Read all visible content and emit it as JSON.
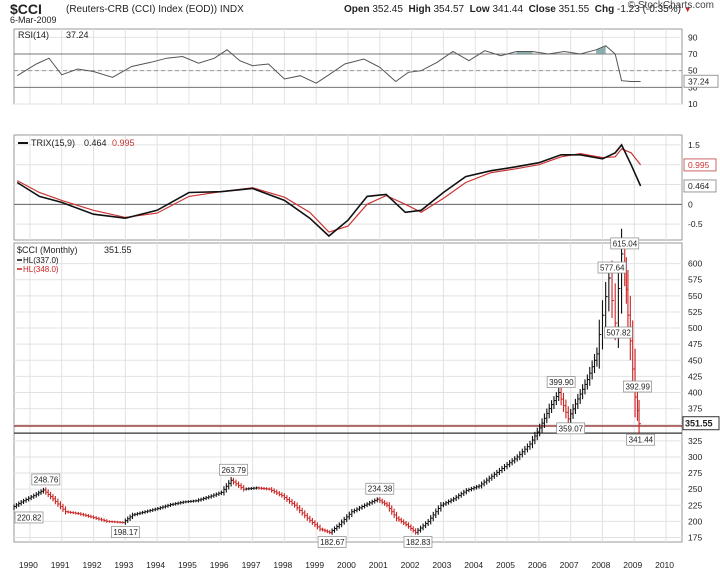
{
  "header": {
    "ticker": "$CCI",
    "description": "(Reuters-CRB (CCI) Index (EOD))",
    "exchange": "INDX",
    "date": "6-Mar-2009",
    "open_label": "Open",
    "open": "352.45",
    "high_label": "High",
    "high": "354.57",
    "low_label": "Low",
    "low": "341.44",
    "close_label": "Close",
    "close": "351.55",
    "chg_label": "Chg",
    "chg": "-1.23 (-0.35%)",
    "chg_arrow": "▼",
    "logo": "© StockCharts.com"
  },
  "colors": {
    "price_up": "#111111",
    "price_down": "#cc2222",
    "trix": "#111111",
    "signal": "#cc3333",
    "rsi": "#555555",
    "rsi_fill": "#6f9c9c",
    "hline": "#8b1a1a",
    "grid": "#bbbbbb"
  },
  "chart_data": [
    {
      "type": "line",
      "panel": "rsi",
      "title": "RSI(14)",
      "value_label": "37.24",
      "last_value": 37.24,
      "ylim": [
        10,
        100
      ],
      "yticks": [
        90,
        70,
        50,
        30,
        10
      ],
      "overbought": 70,
      "oversold": 30,
      "x": [
        1989.6,
        1990.2,
        1990.6,
        1991.0,
        1991.5,
        1992.0,
        1992.6,
        1993.2,
        1993.8,
        1994.3,
        1994.8,
        1995.3,
        1995.8,
        1996.2,
        1996.6,
        1997.0,
        1997.5,
        1998.0,
        1998.5,
        1999.0,
        1999.4,
        1999.9,
        2000.5,
        2001.0,
        2001.5,
        2001.9,
        2002.3,
        2002.8,
        2003.3,
        2003.8,
        2004.3,
        2004.8,
        2005.3,
        2005.8,
        2006.3,
        2006.8,
        2007.3,
        2007.8,
        2008.1,
        2008.4,
        2008.6,
        2008.9,
        2009.2
      ],
      "y": [
        44,
        58,
        65,
        45,
        52,
        49,
        42,
        55,
        60,
        65,
        67,
        59,
        65,
        75,
        62,
        56,
        58,
        40,
        44,
        35,
        45,
        58,
        64,
        54,
        37,
        48,
        50,
        60,
        73,
        62,
        74,
        68,
        73,
        73,
        70,
        73,
        70,
        75,
        80,
        70,
        38,
        37,
        37
      ]
    },
    {
      "type": "line",
      "panel": "trix",
      "title": "TRIX(15,9)",
      "value_label": "0.464",
      "signal_label": "0.995",
      "ylim": [
        -0.9,
        1.75
      ],
      "yticks": [
        1.5,
        1.0,
        0.5,
        0.0,
        -0.5
      ],
      "series": [
        {
          "role": "trix",
          "last": 0.464,
          "x": [
            1989.6,
            1990.3,
            1991.0,
            1992.0,
            1993.0,
            1994.0,
            1995.0,
            1996.0,
            1997.0,
            1998.0,
            1998.8,
            1999.4,
            2000.0,
            2000.6,
            2001.2,
            2001.8,
            2002.3,
            2003.0,
            2003.7,
            2004.5,
            2005.3,
            2006.0,
            2006.7,
            2007.3,
            2008.0,
            2008.4,
            2008.6,
            2008.9,
            2009.2
          ],
          "y": [
            0.55,
            0.2,
            0.05,
            -0.25,
            -0.35,
            -0.15,
            0.3,
            0.32,
            0.4,
            0.1,
            -0.35,
            -0.8,
            -0.4,
            0.2,
            0.25,
            -0.2,
            -0.15,
            0.3,
            0.7,
            0.85,
            0.95,
            1.05,
            1.25,
            1.25,
            1.15,
            1.3,
            1.5,
            1.0,
            0.464
          ]
        },
        {
          "role": "signal",
          "last": 0.995,
          "x": [
            1989.6,
            1990.3,
            1991.0,
            1992.0,
            1993.0,
            1994.0,
            1995.0,
            1996.0,
            1997.0,
            1998.0,
            1998.8,
            1999.4,
            2000.0,
            2000.6,
            2001.2,
            2001.8,
            2002.3,
            2003.0,
            2003.7,
            2004.5,
            2005.3,
            2006.0,
            2006.7,
            2007.3,
            2008.0,
            2008.4,
            2008.6,
            2008.9,
            2009.2
          ],
          "y": [
            0.6,
            0.3,
            0.1,
            -0.15,
            -0.33,
            -0.22,
            0.2,
            0.32,
            0.42,
            0.18,
            -0.2,
            -0.7,
            -0.55,
            0.0,
            0.22,
            0.0,
            -0.2,
            0.15,
            0.55,
            0.8,
            0.9,
            1.0,
            1.2,
            1.28,
            1.18,
            1.2,
            1.4,
            1.3,
            0.995
          ]
        }
      ]
    },
    {
      "type": "line",
      "panel": "price",
      "title": "$CCI (Monthly)",
      "value_label": "351.55",
      "legend": [
        {
          "label": "HL(337.0)",
          "value": 337.0,
          "color": "#111111"
        },
        {
          "label": "HL(348.0)",
          "value": 348.0,
          "color": "#cc2222"
        }
      ],
      "ylim": [
        168,
        632
      ],
      "yticks": [
        600,
        575,
        550,
        525,
        500,
        475,
        450,
        425,
        400,
        375,
        350,
        325,
        300,
        275,
        250,
        225,
        200,
        175
      ],
      "xlim": [
        1989.5,
        2010.5
      ],
      "xticks": [
        1990,
        1991,
        1992,
        1993,
        1994,
        1995,
        1996,
        1997,
        1998,
        1999,
        2000,
        2001,
        2002,
        2003,
        2004,
        2005,
        2006,
        2007,
        2008,
        2009,
        2010
      ],
      "price_tag": "351.55",
      "x": [
        1989.5,
        1989.8,
        1990.2,
        1990.5,
        1990.8,
        1991.2,
        1991.6,
        1992.0,
        1992.5,
        1993.0,
        1993.3,
        1993.7,
        1994.1,
        1994.5,
        1994.9,
        1995.3,
        1995.7,
        1996.1,
        1996.4,
        1996.8,
        1997.2,
        1997.6,
        1998.0,
        1998.4,
        1998.8,
        1999.2,
        1999.5,
        1999.8,
        2000.2,
        2000.6,
        2001.0,
        2001.3,
        2001.6,
        2001.9,
        2002.2,
        2002.6,
        2003.0,
        2003.4,
        2003.8,
        2004.2,
        2004.6,
        2005.0,
        2005.4,
        2005.8,
        2006.1,
        2006.4,
        2006.7,
        2007.0,
        2007.3,
        2007.6,
        2007.9,
        2008.1,
        2008.3,
        2008.5,
        2008.7,
        2008.8,
        2008.95,
        2009.1,
        2009.2
      ],
      "y": [
        220.82,
        230,
        240,
        248.76,
        235,
        215,
        212,
        207,
        200,
        198.17,
        210,
        215,
        220,
        226,
        230,
        232,
        238,
        245,
        263.79,
        250,
        252,
        250,
        240,
        225,
        205,
        188,
        182.67,
        195,
        215,
        225,
        234.38,
        225,
        205,
        195,
        182.83,
        200,
        225,
        235,
        248,
        255,
        270,
        285,
        300,
        320,
        345,
        375,
        399.9,
        359.07,
        390,
        420,
        460,
        520,
        577.64,
        507.82,
        615.04,
        560,
        480,
        392.99,
        351.55
      ],
      "annotations": [
        {
          "x": 1989.5,
          "y": 220.82,
          "text": "220.82"
        },
        {
          "x": 1990.5,
          "y": 248.76,
          "text": "248.76"
        },
        {
          "x": 1993.0,
          "y": 198.17,
          "text": "198.17"
        },
        {
          "x": 1996.4,
          "y": 263.79,
          "text": "263.79"
        },
        {
          "x": 1999.5,
          "y": 182.67,
          "text": "182.67"
        },
        {
          "x": 2001.0,
          "y": 234.38,
          "text": "234.38"
        },
        {
          "x": 2002.2,
          "y": 182.83,
          "text": "182.83"
        },
        {
          "x": 2006.7,
          "y": 399.9,
          "text": "399.90"
        },
        {
          "x": 2007.0,
          "y": 359.07,
          "text": "359.07"
        },
        {
          "x": 2008.3,
          "y": 577.64,
          "text": "577.64"
        },
        {
          "x": 2008.5,
          "y": 507.82,
          "text": "507.82"
        },
        {
          "x": 2008.7,
          "y": 615.04,
          "text": "615.04"
        },
        {
          "x": 2009.1,
          "y": 392.99,
          "text": "392.99"
        },
        {
          "x": 2009.2,
          "y": 341.44,
          "text": "341.44"
        }
      ],
      "hlines": [
        {
          "value": 348.0,
          "color": "#8b1a1a"
        },
        {
          "value": 337.0,
          "color": "#333333"
        }
      ]
    }
  ]
}
